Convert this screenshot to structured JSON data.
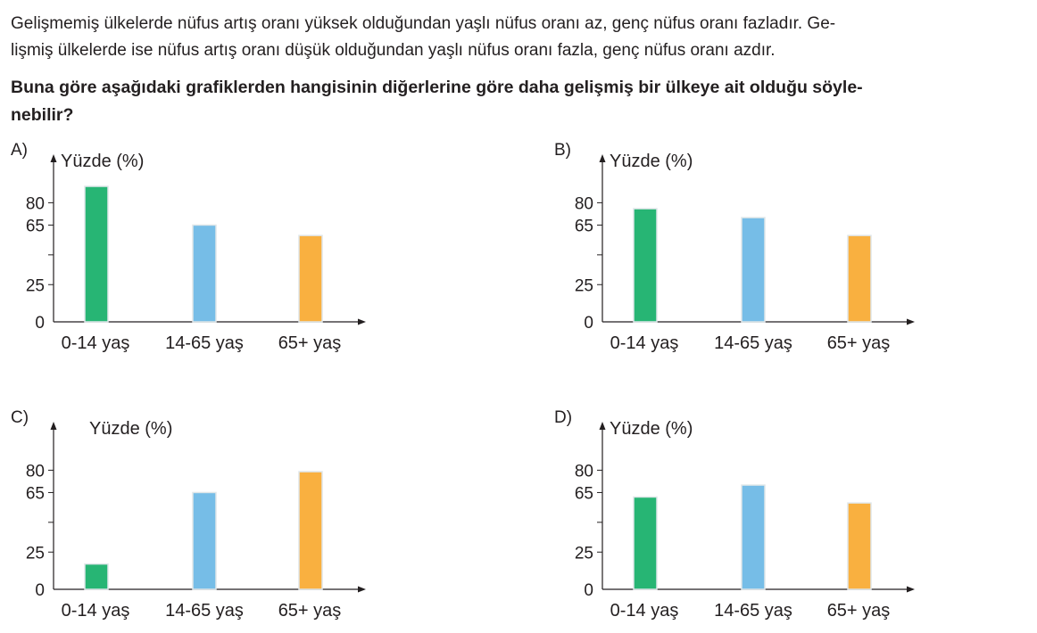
{
  "question": {
    "intro_line1": "Gelişmemiş ülkelerde nüfus artış oranı yüksek olduğundan yaşlı nüfus oranı az, genç nüfus oranı fazladır. Ge-",
    "intro_line2": "lişmiş ülkelerde ise nüfus artış oranı düşük olduğundan yaşlı nüfus oranı fazla, genç nüfus oranı azdır.",
    "stem_line1": "Buna göre aşağıdaki grafiklerden hangisinin diğerlerine göre daha gelişmiş bir ülkeye ait olduğu söyle-",
    "stem_line2": "nebilir?"
  },
  "options": [
    {
      "label": "A)"
    },
    {
      "label": "B)"
    },
    {
      "label": "C)"
    },
    {
      "label": "D)"
    }
  ],
  "colors": {
    "0-14": "#27b574",
    "14-65": "#76bde7",
    "65+": "#f9b040",
    "axis": "#231f20"
  },
  "chart_data": [
    {
      "option": "A)",
      "type": "bar",
      "ylabel": "Yüzde (%)",
      "categories": [
        "0-14 yaş",
        "14-65 yaş",
        "65+ yaş"
      ],
      "values": [
        91,
        65,
        58
      ],
      "yticks": [
        "80",
        "65",
        "25",
        "0"
      ],
      "ytick_values": [
        80,
        65,
        25,
        0
      ],
      "unlabeled_ticks": [
        45
      ]
    },
    {
      "option": "B)",
      "type": "bar",
      "ylabel": "Yüzde (%)",
      "categories": [
        "0-14 yaş",
        "14-65 yaş",
        "65+ yaş"
      ],
      "values": [
        76,
        70,
        58
      ],
      "yticks": [
        "80",
        "65",
        "25",
        "0"
      ],
      "ytick_values": [
        80,
        65,
        25,
        0
      ],
      "unlabeled_ticks": [
        45
      ]
    },
    {
      "option": "C)",
      "type": "bar",
      "ylabel": "Yüzde (%)",
      "categories": [
        "0-14 yaş",
        "14-65 yaş",
        "65+ yaş"
      ],
      "values": [
        17,
        65,
        79
      ],
      "yticks": [
        "80",
        "65",
        "25",
        "0"
      ],
      "ytick_values": [
        80,
        65,
        25,
        0
      ],
      "unlabeled_ticks": [
        45
      ]
    },
    {
      "option": "D)",
      "type": "bar",
      "ylabel": "Yüzde (%)",
      "categories": [
        "0-14 yaş",
        "14-65 yaş",
        "65+ yaş"
      ],
      "values": [
        62,
        70,
        58
      ],
      "yticks": [
        "80",
        "65",
        "25",
        "0"
      ],
      "ytick_values": [
        80,
        65,
        25,
        0
      ],
      "unlabeled_ticks": [
        45
      ]
    }
  ]
}
